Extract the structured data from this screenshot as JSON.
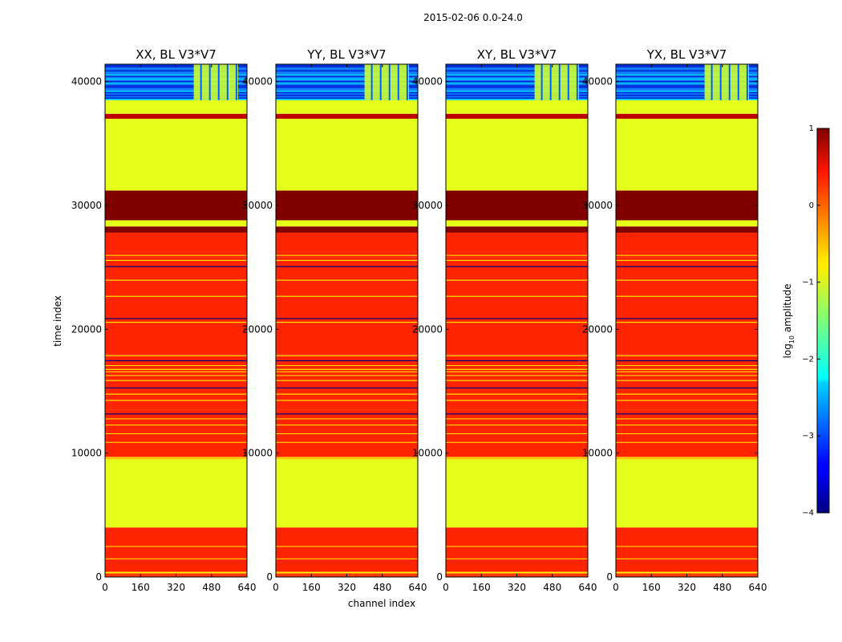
{
  "chart_data": {
    "type": "heatmap",
    "suptitle": "2015-02-06 0.0-24.0",
    "xlabel": "channel index",
    "ylabel": "time index",
    "xlim": [
      0,
      640
    ],
    "ylim": [
      0,
      41400
    ],
    "xticks": [
      "0",
      "160",
      "320",
      "480",
      "640"
    ],
    "yticks": [
      "0",
      "10000",
      "20000",
      "30000",
      "40000"
    ],
    "panels": [
      {
        "title": "XX, BL V3*V7"
      },
      {
        "title": "YY, BL V3*V7"
      },
      {
        "title": "XY, BL V3*V7"
      },
      {
        "title": "YX, BL V3*V7"
      }
    ],
    "bands": [
      {
        "from": 0,
        "to": 300,
        "value": 0.1
      },
      {
        "from": 300,
        "to": 420,
        "value": -0.8
      },
      {
        "from": 420,
        "to": 4000,
        "value": 0.2
      },
      {
        "from": 4000,
        "to": 9500,
        "value": -1.0
      },
      {
        "from": 9500,
        "to": 9700,
        "value": -0.6
      },
      {
        "from": 9700,
        "to": 13500,
        "value": 0.2
      },
      {
        "from": 13500,
        "to": 16000,
        "value": 0.2
      },
      {
        "from": 16000,
        "to": 18000,
        "value": 0.2
      },
      {
        "from": 18000,
        "to": 25800,
        "value": 0.2
      },
      {
        "from": 25800,
        "to": 26300,
        "value": 0.2
      },
      {
        "from": 26300,
        "to": 27800,
        "value": 0.2
      },
      {
        "from": 27800,
        "to": 28300,
        "value": 1.0
      },
      {
        "from": 28300,
        "to": 28800,
        "value": -1.0
      },
      {
        "from": 28800,
        "to": 31200,
        "value": 1.0
      },
      {
        "from": 31200,
        "to": 37000,
        "value": -1.0
      },
      {
        "from": 37000,
        "to": 37400,
        "value": 0.7
      },
      {
        "from": 37400,
        "to": 38500,
        "value": -1.0
      },
      {
        "from": 38500,
        "to": 41400,
        "value": -2.2
      }
    ],
    "colorbar": {
      "label_main": "log",
      "label_sub": "10",
      "label_rest": " amplitude",
      "range": [
        -4,
        1
      ],
      "ticks": [
        "1",
        "0",
        "−1",
        "−2",
        "−3",
        "−4"
      ],
      "colormap": "jet"
    }
  }
}
